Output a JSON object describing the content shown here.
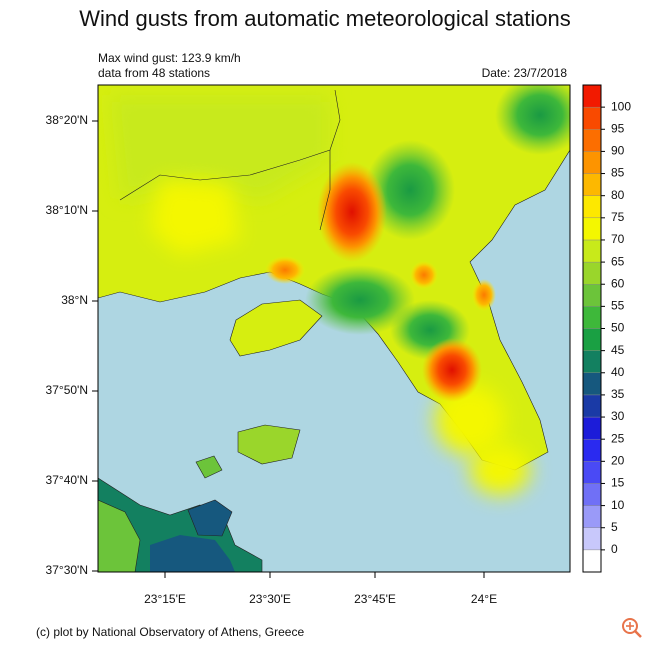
{
  "header": {
    "title": "Wind gusts from automatic meteorological stations",
    "line1": "Max wind gust: 123.9 km/h",
    "line2": "data from 48 stations",
    "date": "Date: 23/7/2018"
  },
  "map": {
    "lat_labels": [
      "38°20'N",
      "38°10'N",
      "38°N",
      "37°50'N",
      "37°40'N",
      "37°30'N"
    ],
    "lon_labels": [
      "23°15'E",
      "23°30'E",
      "23°45'E",
      "24°E"
    ]
  },
  "colorbar": {
    "ticks": [
      0,
      5,
      10,
      15,
      20,
      25,
      30,
      35,
      40,
      45,
      50,
      55,
      60,
      65,
      70,
      75,
      80,
      85,
      90,
      95,
      100
    ],
    "colors": [
      "#ffffff",
      "#c8c8fb",
      "#9a9af8",
      "#7070f6",
      "#4a4af5",
      "#2a2af0",
      "#1c1cd9",
      "#1a3aa6",
      "#16587e",
      "#138060",
      "#1aa043",
      "#3eb83a",
      "#6cc43a",
      "#9ad62b",
      "#c8ea1a",
      "#f4f700",
      "#fde800",
      "#fdb800",
      "#fd9400",
      "#fc6e00",
      "#f94a00",
      "#f21a00"
    ]
  },
  "footer": {
    "credit": "(c) plot by National Observatory of Athens, Greece"
  }
}
